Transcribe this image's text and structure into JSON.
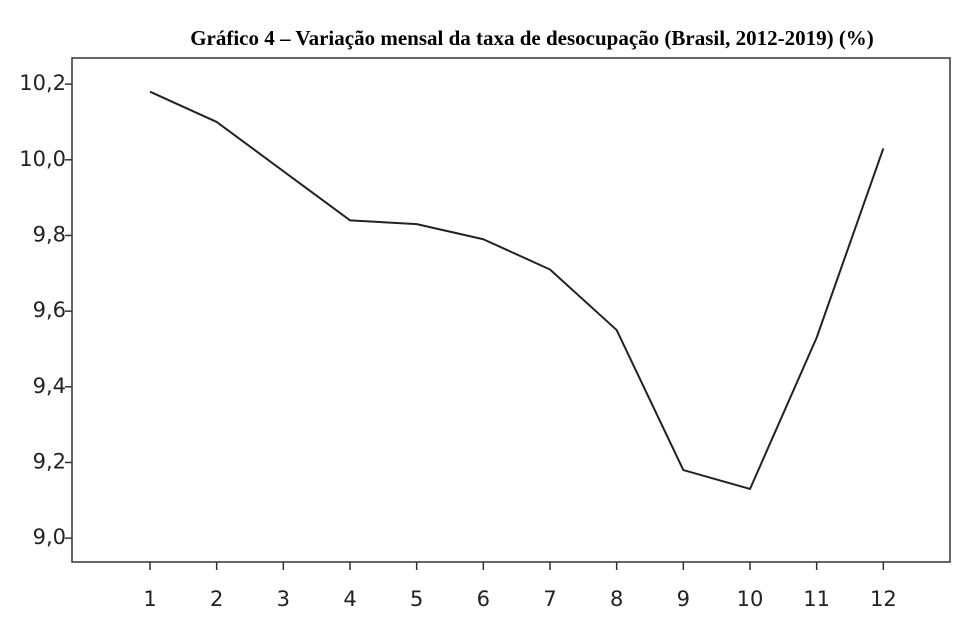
{
  "chart_data": {
    "type": "line",
    "title": "Gráfico 4 – Variação mensal da taxa de desocupação (Brasil, 2012-2019) (%)",
    "x": [
      1,
      2,
      3,
      4,
      5,
      6,
      7,
      8,
      9,
      10,
      11,
      12
    ],
    "series": [
      {
        "color": "#222222",
        "values": [
          10.18,
          10.1,
          9.97,
          9.84,
          9.83,
          9.79,
          9.71,
          9.55,
          9.18,
          9.13,
          9.53,
          10.03
        ]
      }
    ],
    "xlim": [
      -0.17,
      13.0
    ],
    "xticks": [
      1,
      2,
      3,
      4,
      5,
      6,
      7,
      8,
      9,
      10,
      11,
      12
    ],
    "ylim": [
      8.937,
      10.269
    ],
    "yticks": [
      {
        "value": 9.0,
        "label": "9,0"
      },
      {
        "value": 9.2,
        "label": "9,2"
      },
      {
        "value": 9.4,
        "label": "9,4"
      },
      {
        "value": 9.6,
        "label": "9,6"
      },
      {
        "value": 9.8,
        "label": "9,8"
      },
      {
        "value": 10.0,
        "label": "10,0"
      },
      {
        "value": 10.2,
        "label": "10,2"
      }
    ],
    "grid": false
  }
}
